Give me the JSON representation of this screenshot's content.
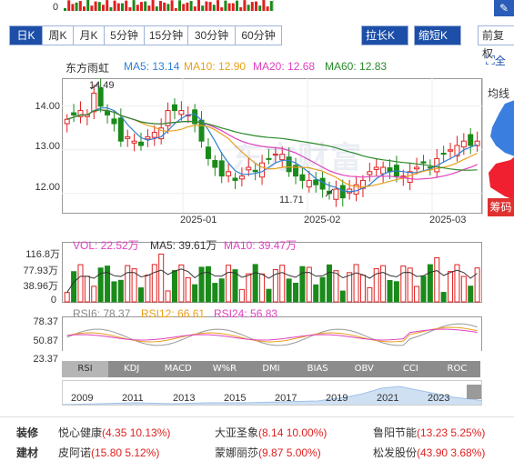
{
  "tabs": [
    "日K",
    "周K",
    "月K",
    "5分钟",
    "15分钟",
    "30分钟",
    "60分钟"
  ],
  "right_buttons": [
    "拉长K线",
    "缩短K线",
    "前复权"
  ],
  "side_labels": {
    "fullscreen": "全",
    "ma_line": "均线",
    "chip": "筹码"
  },
  "stock_name": "东方雨虹",
  "ma_legend": [
    {
      "label": "MA5: 13.14",
      "color": "#2f7fd4"
    },
    {
      "label": "MA10: 12.90",
      "color": "#e8a01b"
    },
    {
      "label": "MA20: 12.68",
      "color": "#e040c0"
    },
    {
      "label": "MA60: 12.83",
      "color": "#2a8a2a"
    }
  ],
  "price_axis": [
    "14.00",
    "13.00",
    "12.00"
  ],
  "date_axis": [
    "2025-01",
    "2025-02",
    "2025-03"
  ],
  "annotations": {
    "high": "14.49",
    "low": "11.71"
  },
  "watermark": "东方财富",
  "vol_legend": [
    {
      "label": "VOL: 22.52万",
      "color": "#e040c0"
    },
    {
      "label": "MA5: 39.61万",
      "color": "#333333"
    },
    {
      "label": "MA10: 39.47万",
      "color": "#e040c0"
    }
  ],
  "vol_axis": [
    "116.8万",
    "77.93万",
    "38.96万",
    "0"
  ],
  "rsi_legend": [
    {
      "label": "RSI6: 78.37",
      "color": "#999999"
    },
    {
      "label": "RSI12: 66.61",
      "color": "#e8a01b"
    },
    {
      "label": "RSI24: 56.83",
      "color": "#e040c0"
    }
  ],
  "rsi_axis": [
    "78.37",
    "50.87",
    "23.37"
  ],
  "indicator_tabs": [
    "RSI",
    "KDJ",
    "MACD",
    "W%R",
    "DMI",
    "BIAS",
    "OBV",
    "CCI",
    "ROC"
  ],
  "timeline_years": [
    "2009",
    "2011",
    "2013",
    "2015",
    "2017",
    "2019",
    "2021",
    "2023"
  ],
  "related": {
    "categories": [
      "装修",
      "建材"
    ],
    "row1": [
      {
        "name": "悦心健康",
        "val": "(4.35 10.13%)"
      },
      {
        "name": "大亚圣象",
        "val": "(8.14 10.00%)"
      },
      {
        "name": "鲁阳节能",
        "val": "(13.23 5.25%)"
      }
    ],
    "row2": [
      {
        "name": "皮阿诺",
        "val": "(15.80 5.12%)"
      },
      {
        "name": "蒙娜丽莎",
        "val": "(9.87 5.00%)"
      },
      {
        "name": "松发股份",
        "val": "(43.90 3.68%)"
      }
    ]
  },
  "colors": {
    "up": "#e02020",
    "down": "#1a8a1a",
    "accent": "#1d4fa8"
  },
  "chart_data": {
    "type": "candlestick",
    "price_range": [
      11.6,
      14.6
    ],
    "close": [
      13.7,
      13.8,
      13.9,
      13.8,
      14.3,
      14.0,
      13.8,
      13.6,
      13.2,
      13.3,
      13.2,
      13.1,
      13.3,
      13.4,
      13.5,
      13.9,
      13.9,
      13.9,
      13.8,
      13.6,
      13.2,
      12.8,
      12.6,
      12.4,
      12.5,
      12.3,
      12.4,
      12.6,
      12.5,
      12.7,
      12.8,
      12.9,
      12.9,
      12.5,
      12.4,
      12.3,
      12.3,
      12.2,
      12.1,
      12.0,
      12.1,
      11.9,
      12.1,
      12.2,
      12.3,
      12.5,
      12.6,
      12.6,
      12.5,
      12.4,
      12.4,
      12.5,
      12.6,
      12.7,
      12.6,
      12.8,
      12.9,
      13.0,
      13.1,
      13.2,
      13.1,
      13.2
    ]
  }
}
